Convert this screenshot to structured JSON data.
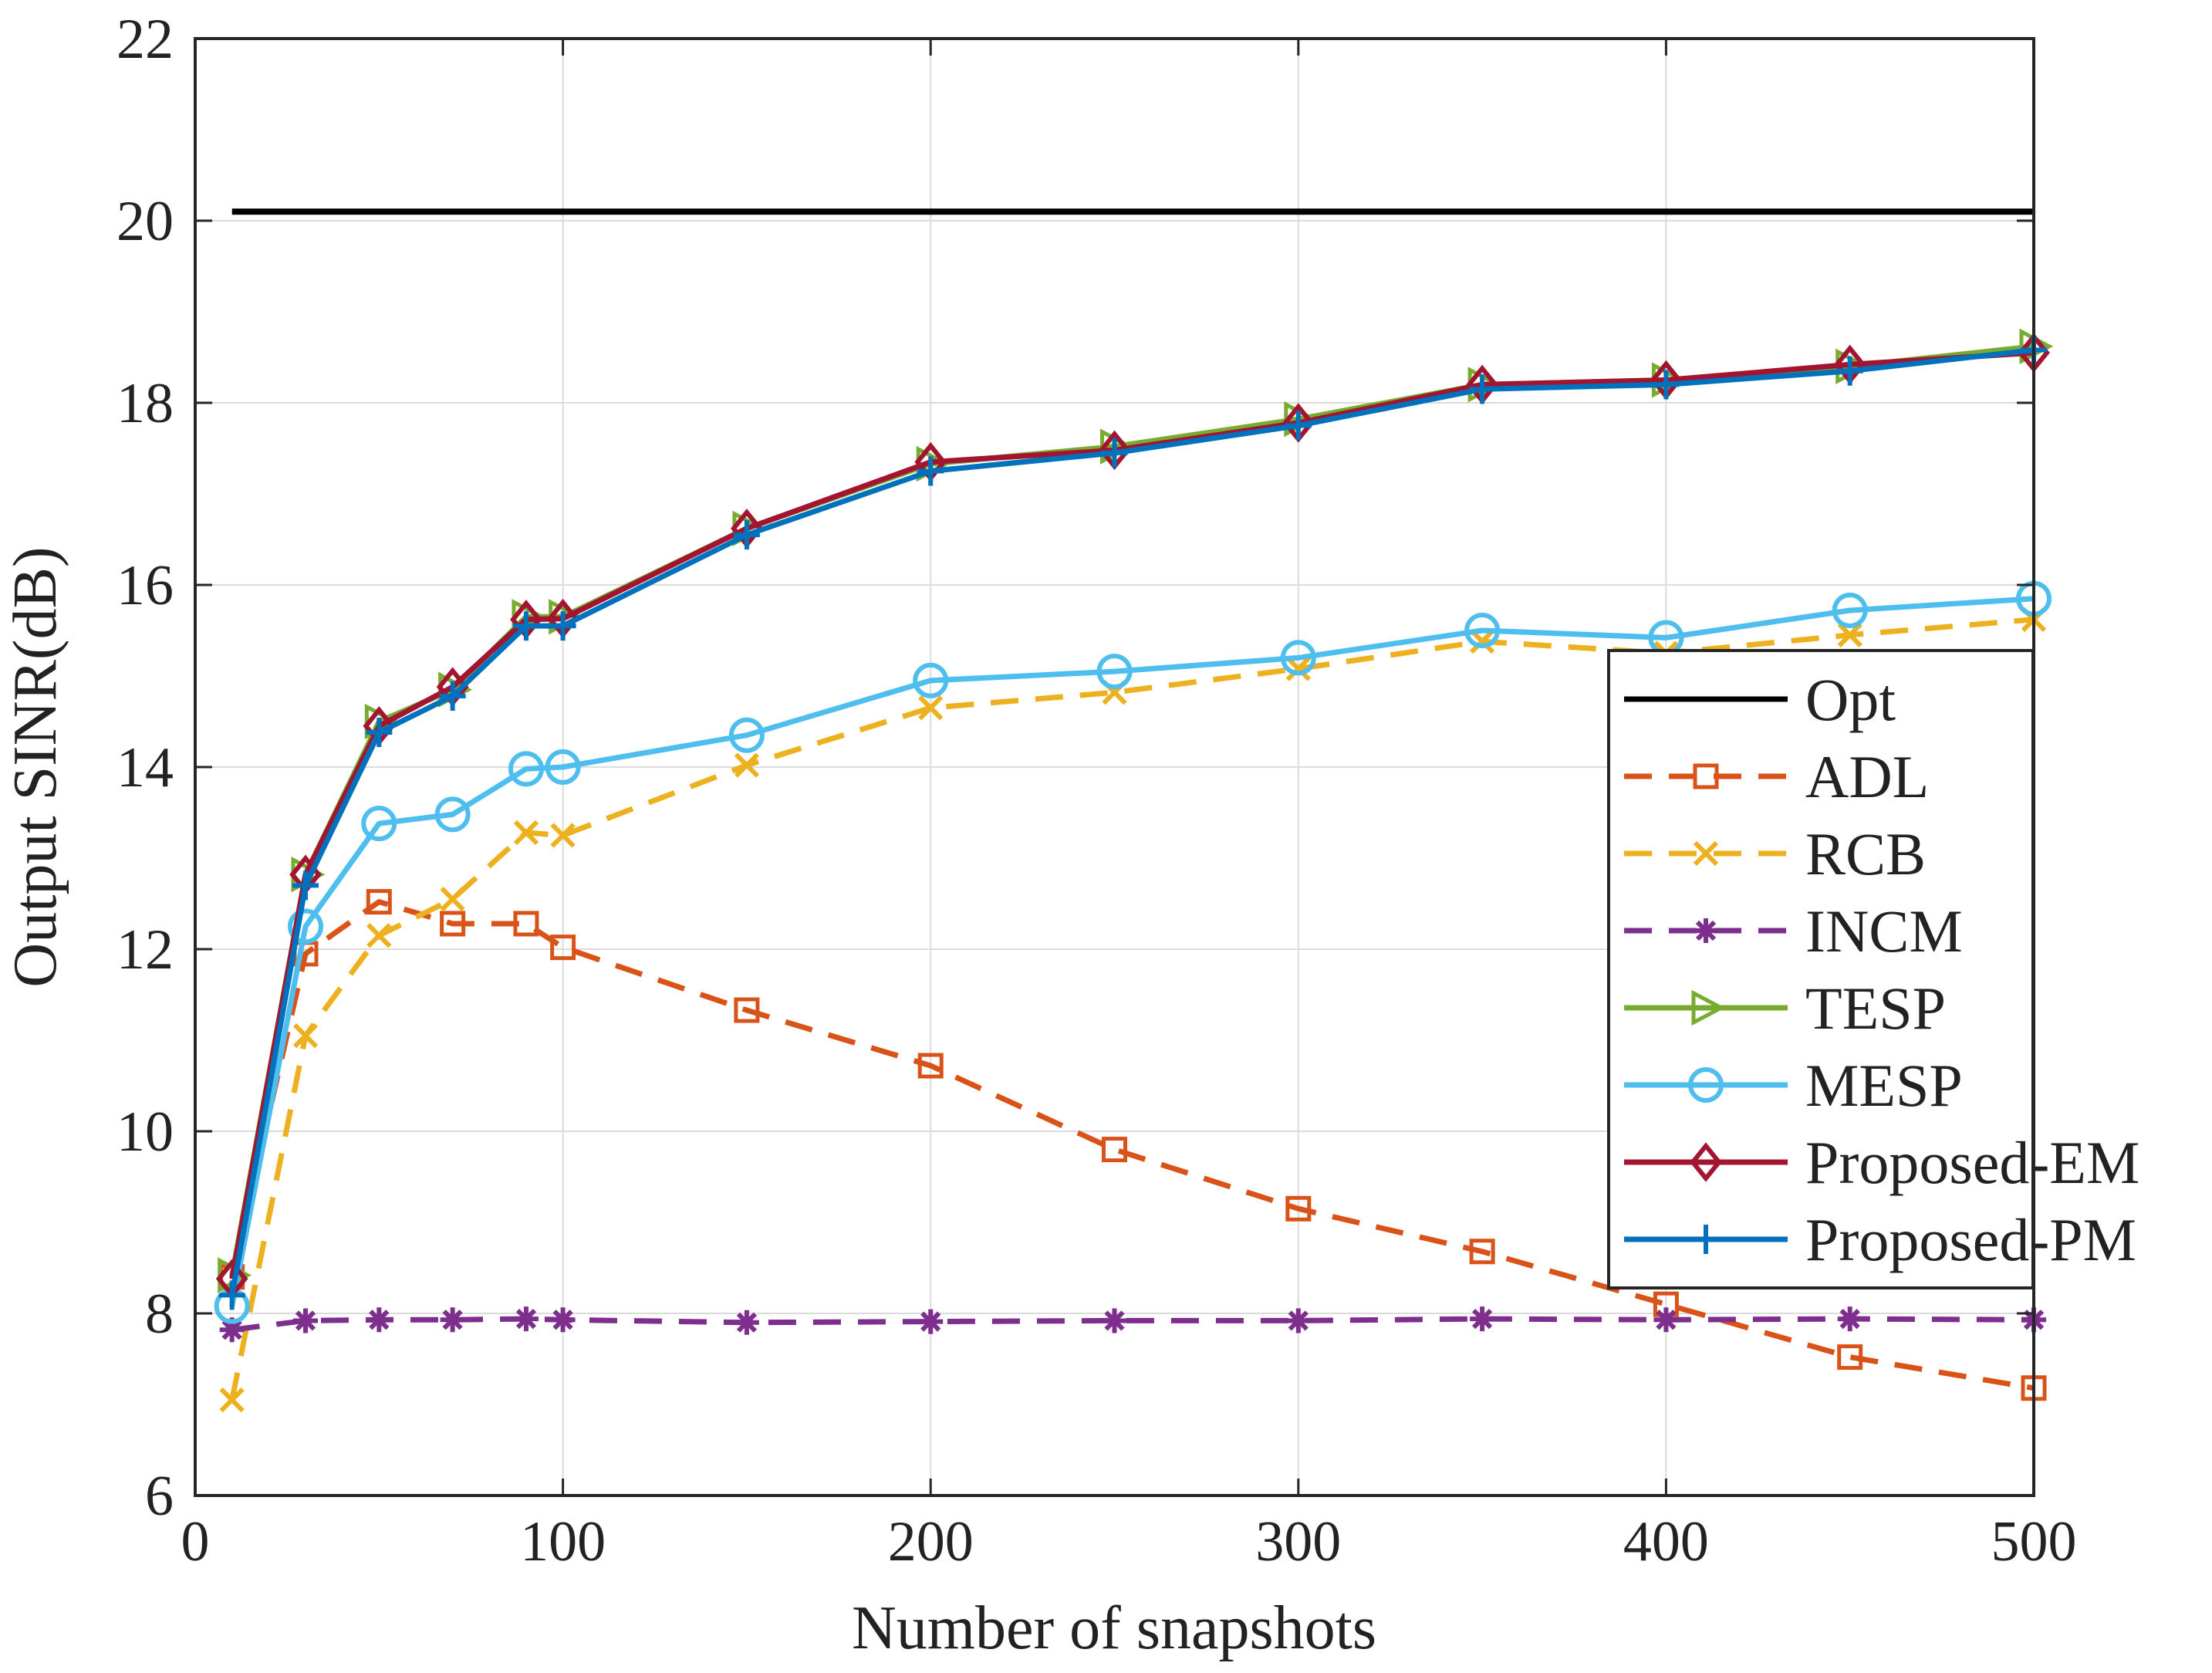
{
  "chart_data": {
    "type": "line",
    "title": "",
    "xlabel": "Number of snapshots",
    "ylabel": "Output SINR(dB)",
    "xlim": [
      0,
      500
    ],
    "ylim": [
      6,
      22
    ],
    "xticks": [
      0,
      100,
      200,
      300,
      400,
      500
    ],
    "yticks": [
      6,
      8,
      10,
      12,
      14,
      16,
      18,
      20,
      22
    ],
    "xtick_labels": [
      "0",
      "100",
      "200",
      "300",
      "400",
      "500"
    ],
    "ytick_labels": [
      "6",
      "8",
      "10",
      "12",
      "14",
      "16",
      "18",
      "20",
      "22"
    ],
    "grid": true,
    "legend_position": "right",
    "x": [
      10,
      30,
      50,
      70,
      90,
      100,
      150,
      200,
      250,
      300,
      350,
      400,
      450,
      500
    ],
    "series": [
      {
        "name": "Opt",
        "color": "#000000",
        "dash": "solid",
        "marker": "none",
        "values": [
          20.1,
          20.1,
          20.1,
          20.1,
          20.1,
          20.1,
          20.1,
          20.1,
          20.1,
          20.1,
          20.1,
          20.1,
          20.1,
          20.1
        ]
      },
      {
        "name": "ADL",
        "color": "#D95319",
        "dash": "dashed",
        "marker": "square",
        "values": [
          8.4,
          11.95,
          12.52,
          12.28,
          12.28,
          12.02,
          11.33,
          10.72,
          9.8,
          9.15,
          8.68,
          8.1,
          7.52,
          7.18
        ]
      },
      {
        "name": "RCB",
        "color": "#EDB120",
        "dash": "dashed",
        "marker": "x",
        "values": [
          7.05,
          11.05,
          12.15,
          12.55,
          13.28,
          13.25,
          14.02,
          14.65,
          14.82,
          15.08,
          15.38,
          15.25,
          15.45,
          15.62
        ]
      },
      {
        "name": "INCM",
        "color": "#7E2F8E",
        "dash": "dashed",
        "marker": "asterisk",
        "values": [
          7.82,
          7.92,
          7.93,
          7.93,
          7.94,
          7.93,
          7.9,
          7.91,
          7.92,
          7.92,
          7.94,
          7.93,
          7.94,
          7.93
        ]
      },
      {
        "name": "TESP",
        "color": "#77AC30",
        "dash": "solid",
        "marker": "triangle-right",
        "values": [
          8.42,
          12.82,
          14.5,
          14.85,
          15.65,
          15.65,
          16.62,
          17.33,
          17.52,
          17.82,
          18.2,
          18.25,
          18.4,
          18.62
        ]
      },
      {
        "name": "MESP",
        "color": "#4DBEEE",
        "dash": "solid",
        "marker": "circle",
        "values": [
          8.08,
          12.25,
          13.38,
          13.48,
          13.98,
          14.0,
          14.35,
          14.95,
          15.05,
          15.2,
          15.5,
          15.42,
          15.72,
          15.85
        ]
      },
      {
        "name": "Proposed-EM",
        "color": "#A2142F",
        "dash": "solid",
        "marker": "diamond",
        "values": [
          8.38,
          12.82,
          14.45,
          14.88,
          15.62,
          15.63,
          16.62,
          17.35,
          17.48,
          17.78,
          18.2,
          18.25,
          18.42,
          18.55
        ]
      },
      {
        "name": "Proposed-PM",
        "color": "#0072BD",
        "dash": "solid",
        "marker": "plus",
        "values": [
          8.2,
          12.7,
          14.38,
          14.78,
          15.55,
          15.55,
          16.55,
          17.25,
          17.45,
          17.75,
          18.15,
          18.2,
          18.35,
          18.58
        ]
      }
    ]
  }
}
